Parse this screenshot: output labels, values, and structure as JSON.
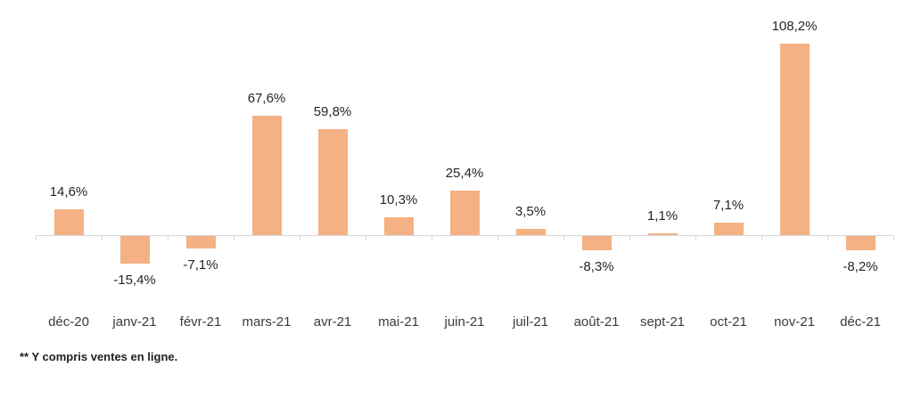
{
  "chart_data": {
    "type": "bar",
    "title": "",
    "xlabel": "",
    "ylabel": "",
    "categories": [
      "déc-20",
      "janv-21",
      "févr-21",
      "mars-21",
      "avr-21",
      "mai-21",
      "juin-21",
      "juil-21",
      "août-21",
      "sept-21",
      "oct-21",
      "nov-21",
      "déc-21"
    ],
    "values": [
      14.6,
      -15.4,
      -7.1,
      67.6,
      59.8,
      10.3,
      25.4,
      3.5,
      -8.3,
      1.1,
      7.1,
      108.2,
      -8.2
    ],
    "value_labels": [
      "14,6%",
      "-15,4%",
      "-7,1%",
      "67,6%",
      "59,8%",
      "10,3%",
      "25,4%",
      "3,5%",
      "-8,3%",
      "1,1%",
      "7,1%",
      "108,2%",
      "-8,2%"
    ],
    "ylim": [
      -25,
      130
    ],
    "grid": false,
    "legend": false,
    "bar_color": "#F4B183",
    "axis_color": "#D9D9D9",
    "value_label_color": "#262626",
    "axis_label_color": "#3b3b3b"
  },
  "footnote": "** Y compris ventes en ligne."
}
